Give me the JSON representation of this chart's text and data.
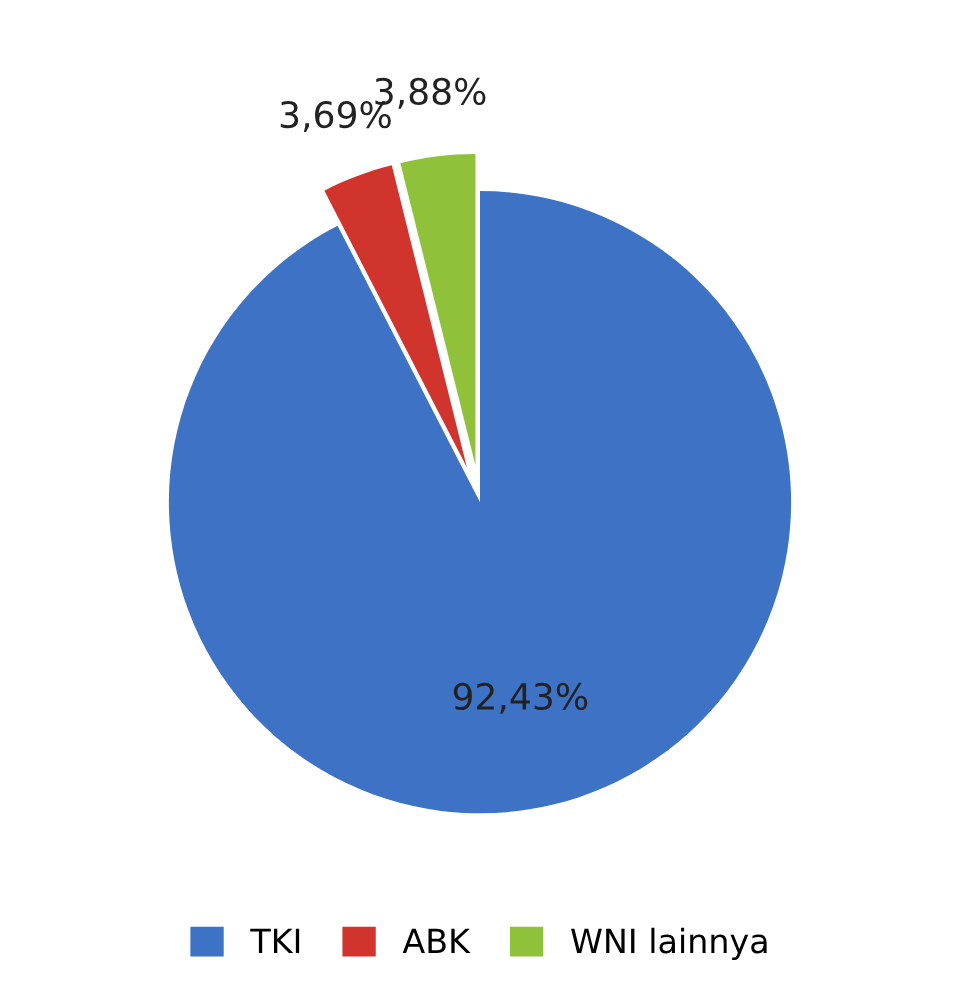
{
  "chart_data": {
    "type": "pie",
    "categories": [
      "TKI",
      "ABK",
      "WNI lainnya"
    ],
    "values": [
      92.43,
      3.69,
      3.88
    ],
    "colors": [
      "#3d72c4",
      "#d0342c",
      "#8fc23a"
    ],
    "value_labels": [
      "92,43%",
      "3,69%",
      "3,88%"
    ],
    "legend": "bottom"
  }
}
